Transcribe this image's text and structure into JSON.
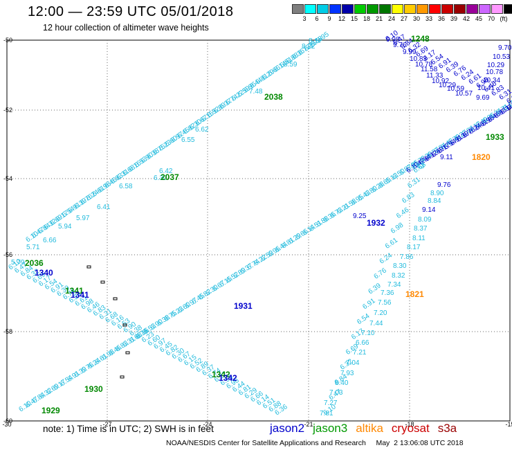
{
  "header": {
    "title": "12:00 — 23:59 UTC 05/01/2018",
    "subtitle": "12 hour collection of altimeter wave heights"
  },
  "colorbar": {
    "colors": [
      "#7f7f7f",
      "#00ffff",
      "#00cce6",
      "#0033ff",
      "#0000aa",
      "#00cc00",
      "#009900",
      "#007700",
      "#ffff00",
      "#ffcc00",
      "#ff9900",
      "#ff0000",
      "#cc0000",
      "#990000",
      "#990099",
      "#cc66ff",
      "#ff99ff",
      "#000000"
    ],
    "labels": [
      "3",
      "6",
      "9",
      "12",
      "15",
      "18",
      "21",
      "24",
      "27",
      "30",
      "33",
      "36",
      "39",
      "42",
      "45",
      "70",
      "(ft)"
    ]
  },
  "map": {
    "lat_ticks": [
      "-50",
      "-52",
      "-54",
      "-56",
      "-58",
      "-60"
    ],
    "lon_ticks": [
      "-30",
      "-27",
      "-24",
      "-21",
      "-18",
      "-15"
    ],
    "times": [
      {
        "label": "1248",
        "color": "#008800"
      },
      {
        "label": "2038",
        "color": "#008800"
      },
      {
        "label": "2037",
        "color": "#008800"
      },
      {
        "label": "2036",
        "color": "#008800"
      },
      {
        "label": "1340",
        "color": "#0000cc"
      },
      {
        "label": "1341",
        "color": "#008800"
      },
      {
        "label": "1341",
        "color": "#0000cc"
      },
      {
        "label": "1932",
        "color": "#0000cc"
      },
      {
        "label": "1931",
        "color": "#0000cc"
      },
      {
        "label": "1342",
        "color": "#008800"
      },
      {
        "label": "1342",
        "color": "#0000cc"
      },
      {
        "label": "1930",
        "color": "#008800"
      },
      {
        "label": "1929",
        "color": "#008800"
      },
      {
        "label": "1820",
        "color": "#ff8800"
      },
      {
        "label": "1821",
        "color": "#ff8800"
      },
      {
        "label": "1933",
        "color": "#008800"
      }
    ],
    "swh_labels": [
      {
        "label": "8.17",
        "color": "#22bbdd"
      },
      {
        "label": "8.22",
        "color": "#22bbdd"
      },
      {
        "label": "8.59",
        "color": "#22bbdd"
      },
      {
        "label": "7.48",
        "color": "#22bbdd"
      },
      {
        "label": "6.62",
        "color": "#22bbdd"
      },
      {
        "label": "6.55",
        "color": "#22bbdd"
      },
      {
        "label": "6.42",
        "color": "#22bbdd"
      },
      {
        "label": "6.30",
        "color": "#22bbdd"
      },
      {
        "label": "6.58",
        "color": "#22bbdd"
      },
      {
        "label": "6.41",
        "color": "#22bbdd"
      },
      {
        "label": "5.97",
        "color": "#22bbdd"
      },
      {
        "label": "5.94",
        "color": "#22bbdd"
      },
      {
        "label": "6.66",
        "color": "#22bbdd"
      },
      {
        "label": "5.79",
        "color": "#22bbdd"
      },
      {
        "label": "5.71",
        "color": "#22bbdd"
      },
      {
        "label": "9.98",
        "color": "#0000cc"
      },
      {
        "label": "9.76",
        "color": "#0000cc"
      },
      {
        "label": "9.99",
        "color": "#0000cc"
      },
      {
        "label": "10.83",
        "color": "#0000cc"
      },
      {
        "label": "10.78",
        "color": "#0000cc"
      },
      {
        "label": "11.58",
        "color": "#0000cc"
      },
      {
        "label": "11.33",
        "color": "#0000cc"
      },
      {
        "label": "10.92",
        "color": "#0000cc"
      },
      {
        "label": "10.29",
        "color": "#0000cc"
      },
      {
        "label": "10.59",
        "color": "#0000cc"
      },
      {
        "label": "10.57",
        "color": "#0000cc"
      },
      {
        "label": "9.70",
        "color": "#0000cc"
      },
      {
        "label": "10.53",
        "color": "#0000cc"
      },
      {
        "label": "10.29",
        "color": "#0000cc"
      },
      {
        "label": "10.78",
        "color": "#0000cc"
      },
      {
        "label": "10.34",
        "color": "#0000cc"
      },
      {
        "label": "10.41",
        "color": "#0000cc"
      },
      {
        "label": "9.69",
        "color": "#0000cc"
      },
      {
        "label": "9.11",
        "color": "#0000cc"
      },
      {
        "label": "9.76",
        "color": "#0000cc"
      },
      {
        "label": "8.90",
        "color": "#22bbdd"
      },
      {
        "label": "8.84",
        "color": "#22bbdd"
      },
      {
        "label": "9.14",
        "color": "#0000cc"
      },
      {
        "label": "8.09",
        "color": "#22bbdd"
      },
      {
        "label": "8.37",
        "color": "#22bbdd"
      },
      {
        "label": "8.11",
        "color": "#22bbdd"
      },
      {
        "label": "8.17",
        "color": "#22bbdd"
      },
      {
        "label": "7.86",
        "color": "#22bbdd"
      },
      {
        "label": "8.30",
        "color": "#22bbdd"
      },
      {
        "label": "8.32",
        "color": "#22bbdd"
      },
      {
        "label": "7.34",
        "color": "#22bbdd"
      },
      {
        "label": "7.36",
        "color": "#22bbdd"
      },
      {
        "label": "7.56",
        "color": "#22bbdd"
      },
      {
        "label": "7.20",
        "color": "#22bbdd"
      },
      {
        "label": "7.44",
        "color": "#22bbdd"
      },
      {
        "label": "7.10",
        "color": "#22bbdd"
      },
      {
        "label": "6.66",
        "color": "#22bbdd"
      },
      {
        "label": "7.21",
        "color": "#22bbdd"
      },
      {
        "label": "7.04",
        "color": "#22bbdd"
      },
      {
        "label": "7.93",
        "color": "#22bbdd"
      },
      {
        "label": "8.40",
        "color": "#22bbdd"
      },
      {
        "label": "7.03",
        "color": "#22bbdd"
      },
      {
        "label": "7.27",
        "color": "#22bbdd"
      },
      {
        "label": "7.81",
        "color": "#22bbdd"
      },
      {
        "label": "9.63",
        "color": "#22bbdd"
      },
      {
        "label": "9.25",
        "color": "#0000cc"
      }
    ]
  },
  "footer": {
    "note": "note:  1) Time is in UTC;  2) SWH is in feet",
    "legend": [
      {
        "label": "jason2",
        "color": "#0000cc"
      },
      {
        "label": "jason3",
        "color": "#009900"
      },
      {
        "label": "altika",
        "color": "#ff8800"
      },
      {
        "label": "cryosat",
        "color": "#cc0000"
      },
      {
        "label": "s3a",
        "color": "#990000"
      }
    ],
    "credit": "NOAA/NESDIS Center for Satellite Applications and Research     May  2 13:06:08 UTC 2018"
  }
}
